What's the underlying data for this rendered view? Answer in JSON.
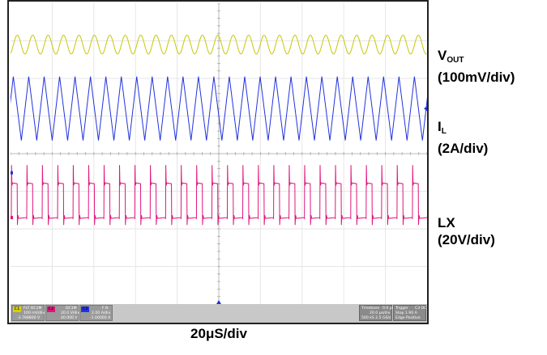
{
  "chart_data": {
    "type": "line",
    "title": "",
    "xlabel": "20μS/div",
    "ylabel": "",
    "divisions": {
      "x": 10,
      "y": 8
    },
    "x_range_div": [
      0,
      10
    ],
    "grid": true,
    "series": [
      {
        "name": "VOUT",
        "scale": "100mV/div",
        "color": "#c8c800",
        "waveform": "sine",
        "cycles": 27,
        "center_div": 1.1,
        "amplitude_div": 0.25
      },
      {
        "name": "IL",
        "scale": "2A/div",
        "color": "#2233dd",
        "waveform": "triangle",
        "cycles": 27,
        "center_div": 2.8,
        "amplitude_div": 0.85
      },
      {
        "name": "LX",
        "scale": "20V/div",
        "color": "#e0157a",
        "waveform": "square",
        "cycles": 27,
        "high_div": 4.8,
        "low_div": 5.7,
        "duty": 0.38
      }
    ]
  },
  "labels": {
    "vout_main": "V",
    "vout_sub": "OUT",
    "vout_scale": "(100mV/div)",
    "il_main": "I",
    "il_sub": "L",
    "il_scale": "(2A/div)",
    "lx_main": "LX",
    "lx_scale": "(20V/div)",
    "timebase": "20μS/div"
  },
  "infobar": {
    "c1": {
      "tag": "C1",
      "l1": "FLT  DC1M",
      "l2": "100 mV/div",
      "l3": "-3.768800 V",
      "color": "#d8d000"
    },
    "c2": {
      "tag": "C2",
      "l1": "DC1M",
      "l2": "20.0 V/div",
      "l3": "40.000 V",
      "color": "#e0157a"
    },
    "c3": {
      "tag": "C3",
      "l1": "F B",
      "l2": "2.00 A/div",
      "l3": "-1.00000 A",
      "color": "#2233dd"
    },
    "timebase": {
      "head": "Timebase",
      "h2": "0.0 µs",
      "l2": "20.0 µs/div",
      "l3": "500 kS   2.5 GS/s"
    },
    "trigger": {
      "head": "Trigger",
      "h2": "C3 DC",
      "l2": "Stop      1.90 A",
      "l3": "Edge      Positive"
    }
  }
}
